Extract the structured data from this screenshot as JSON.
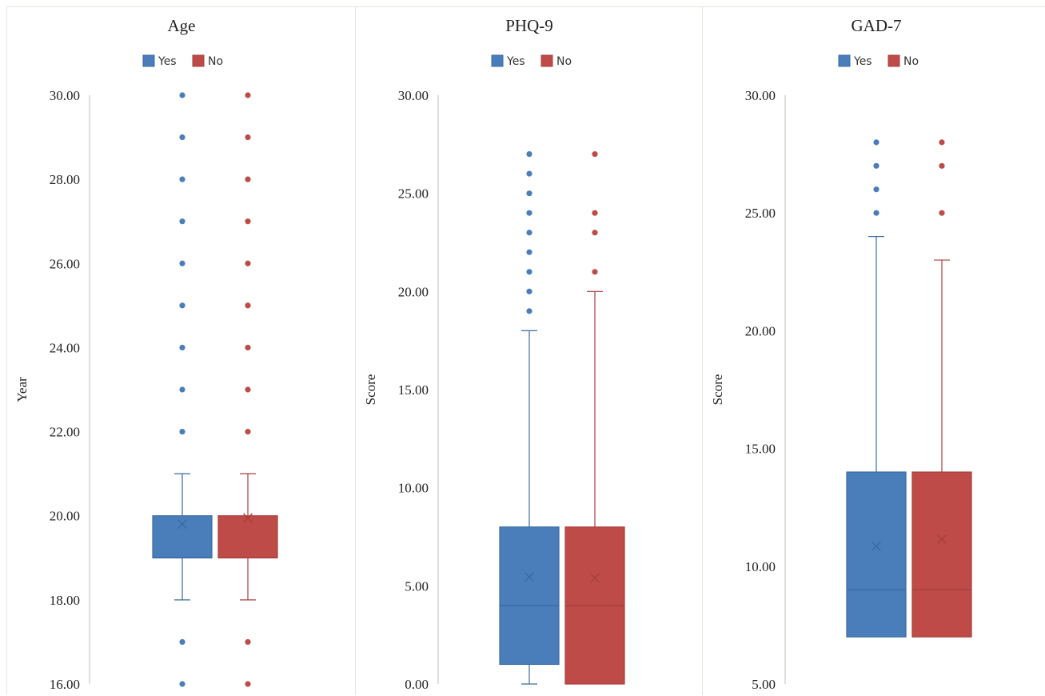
{
  "colors": {
    "yes": "#4a7ebb",
    "no": "#be4b48",
    "yes_line": "#3b6aa3",
    "no_line": "#a63f3c",
    "axis": "#bfc1b5"
  },
  "chart_data": [
    {
      "type": "box",
      "title": "Age",
      "ylabel": "Year",
      "ylim": [
        16,
        30
      ],
      "yticks": [
        "16.00",
        "18.00",
        "20.00",
        "22.00",
        "24.00",
        "26.00",
        "28.00",
        "30.00"
      ],
      "legend": {
        "placement": "top-center",
        "entries": [
          "Yes",
          "No"
        ]
      },
      "series": [
        {
          "name": "Yes",
          "min": 18,
          "q1": 19,
          "median": 19,
          "q3": 20,
          "max": 21,
          "mean": 19.8,
          "outliers": [
            16,
            17,
            22,
            23,
            24,
            25,
            26,
            27,
            28,
            29,
            30
          ]
        },
        {
          "name": "No",
          "min": 18,
          "q1": 19,
          "median": 19,
          "q3": 20,
          "max": 21,
          "mean": 19.95,
          "outliers": [
            16,
            17,
            22,
            23,
            24,
            25,
            26,
            27,
            28,
            29,
            30
          ]
        }
      ]
    },
    {
      "type": "box",
      "title": "PHQ-9",
      "ylabel": "Score",
      "ylim": [
        0,
        30
      ],
      "yticks": [
        "0.00",
        "5.00",
        "10.00",
        "15.00",
        "20.00",
        "25.00",
        "30.00"
      ],
      "legend": {
        "placement": "top-center",
        "entries": [
          "Yes",
          "No"
        ]
      },
      "series": [
        {
          "name": "Yes",
          "min": 0,
          "q1": 1,
          "median": 4,
          "q3": 8,
          "max": 18,
          "mean": 5.45,
          "outliers": [
            19,
            20,
            21,
            22,
            23,
            24,
            25,
            26,
            27
          ]
        },
        {
          "name": "No",
          "min": 0,
          "q1": 0,
          "median": 4,
          "q3": 8,
          "max": 20,
          "mean": 5.4,
          "outliers": [
            21,
            23,
            24,
            27
          ]
        }
      ]
    },
    {
      "type": "box",
      "title": "GAD-7",
      "ylabel": "Score",
      "ylim": [
        5,
        30
      ],
      "yticks": [
        "5.00",
        "10.00",
        "15.00",
        "20.00",
        "25.00",
        "30.00"
      ],
      "legend": {
        "placement": "top-center",
        "entries": [
          "Yes",
          "No"
        ]
      },
      "series": [
        {
          "name": "Yes",
          "min": 7,
          "q1": 7,
          "median": 9,
          "q3": 14,
          "max": 24,
          "mean": 10.85,
          "outliers": [
            25,
            26,
            27,
            28
          ]
        },
        {
          "name": "No",
          "min": 7,
          "q1": 7,
          "median": 9,
          "q3": 14,
          "max": 23,
          "mean": 11.15,
          "outliers": [
            25,
            27,
            28
          ]
        }
      ]
    }
  ]
}
